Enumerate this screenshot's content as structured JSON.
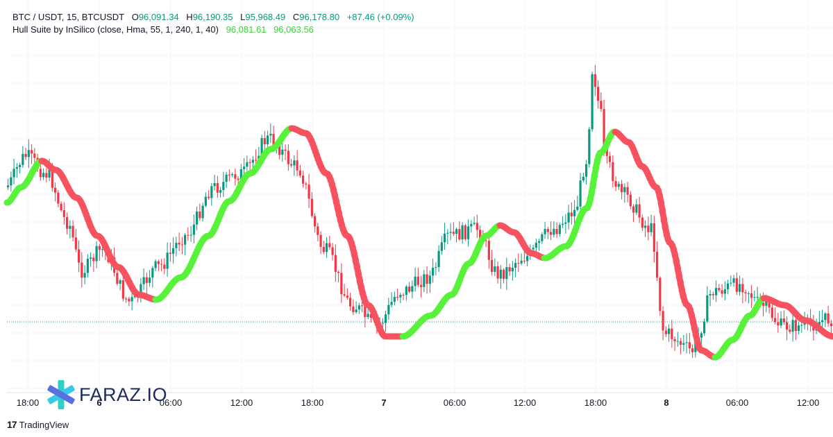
{
  "header": {
    "symbol": "BTC / USDT, 15, BTCUSDT",
    "o_label": "O",
    "o_value": "96,091.34",
    "h_label": "H",
    "h_value": "96,190.35",
    "l_label": "L",
    "l_value": "95,968.49",
    "c_label": "C",
    "c_value": "96,178.80",
    "change": "+87.46 (+0.09%)",
    "indicator": "Hull Suite by InSilico (close, Hma, 55, 1, 240, 1, 40)",
    "ind_value_1": "96,081.61",
    "ind_value_2": "96,063.56"
  },
  "watermark": {
    "text": "FARAZ.IO",
    "logo": "faraz-star-logo"
  },
  "branding": {
    "text": "TradingView",
    "icon": "tradingview-logo-icon"
  },
  "colors": {
    "up": "#089981",
    "down": "#f23645",
    "hull_up": "#59f23a",
    "hull_down": "#f7525f",
    "grid": "#f0f3fa",
    "price_line": "#089981"
  },
  "chart_data": {
    "type": "candlestick",
    "symbol": "BTC / USDT",
    "interval": "15",
    "x_axis_labels": [
      {
        "label": "18:00",
        "bold": false
      },
      {
        "label": "6",
        "bold": true
      },
      {
        "label": "06:00",
        "bold": false
      },
      {
        "label": "12:00",
        "bold": false
      },
      {
        "label": "18:00",
        "bold": false
      },
      {
        "label": "7",
        "bold": true
      },
      {
        "label": "06:00",
        "bold": false
      },
      {
        "label": "12:00",
        "bold": false
      },
      {
        "label": "18:00",
        "bold": false
      },
      {
        "label": "8",
        "bold": true
      },
      {
        "label": "06:00",
        "bold": false
      },
      {
        "label": "12:00",
        "bold": false
      }
    ],
    "last_price": 96178.8,
    "hull_suite_value": 96081.61,
    "hull_suite_shift": 96063.56,
    "grid": true
  }
}
